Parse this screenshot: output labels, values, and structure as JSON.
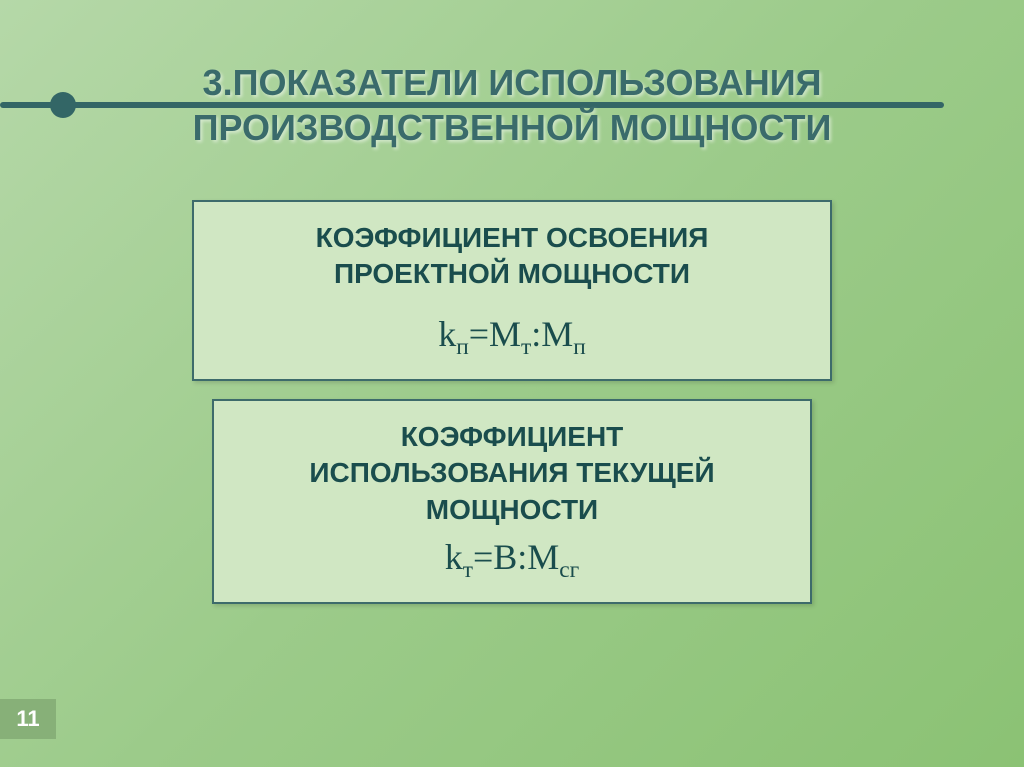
{
  "slide": {
    "title_line1": "3.ПОКАЗАТЕЛИ ИСПОЛЬЗОВАНИЯ",
    "title_line2": "ПРОИЗВОДСТВЕННОЙ МОЩНОСТИ",
    "page_number": "11"
  },
  "box1": {
    "heading_line1": "КОЭФФИЦИЕНТ ОСВОЕНИЯ",
    "heading_line2": "ПРОЕКТНОЙ МОЩНОСТИ",
    "formula_var": "k",
    "formula_sub1": "п",
    "formula_eq": "=М",
    "formula_sub2": "т",
    "formula_sep": ":М",
    "formula_sub3": "п"
  },
  "box2": {
    "heading_line1": "КОЭФФИЦИЕНТ",
    "heading_line2": "ИСПОЛЬЗОВАНИЯ ТЕКУЩЕЙ",
    "heading_line3": "МОЩНОСТИ",
    "formula_var": "k",
    "formula_sub1": "т",
    "formula_eq": "=В:М",
    "formula_sub2": "сг"
  },
  "styling": {
    "background_gradient_start": "#b5d8a8",
    "background_gradient_mid": "#9ccb8a",
    "background_gradient_end": "#8bc274",
    "title_color": "#3a6b6b",
    "title_fontsize": 36,
    "accent_color": "#336666",
    "box_background": "#d0e7c3",
    "box_border_color": "#3d6b6b",
    "box_border_width": 2,
    "box_heading_color": "#1a4d4d",
    "box_heading_fontsize": 28,
    "formula_color": "#1a4d4d",
    "formula_fontsize": 36,
    "formula_font": "Times New Roman",
    "page_number_bg": "#87b078",
    "page_number_color": "#ffffff",
    "page_number_fontsize": 22,
    "box1_width": 640,
    "box2_width": 600,
    "slide_width": 1024,
    "slide_height": 767
  }
}
